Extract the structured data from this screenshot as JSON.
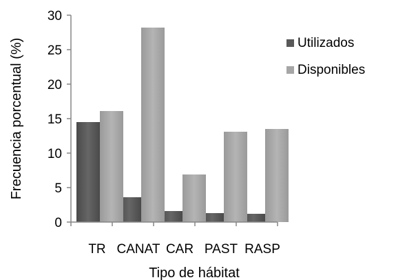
{
  "chart_data": {
    "type": "bar",
    "title": "",
    "xlabel": "Tipo de hábitat",
    "ylabel": "Frecuencia porcentual (%)",
    "categories": [
      "TR",
      "CANAT",
      "CAR",
      "PAST",
      "RASP"
    ],
    "ylim": [
      0,
      30
    ],
    "yticks": [
      "0",
      "5",
      "10",
      "15",
      "20",
      "25",
      "30"
    ],
    "grid": false,
    "legend_position": "top-right",
    "series": [
      {
        "name": "Utilizados",
        "color": "#595959",
        "values": [
          14.5,
          3.6,
          1.6,
          1.3,
          1.2
        ]
      },
      {
        "name": "Disponibles",
        "color": "#a6a6a6",
        "values": [
          16.1,
          28.2,
          6.9,
          13.1,
          13.5
        ]
      }
    ]
  }
}
